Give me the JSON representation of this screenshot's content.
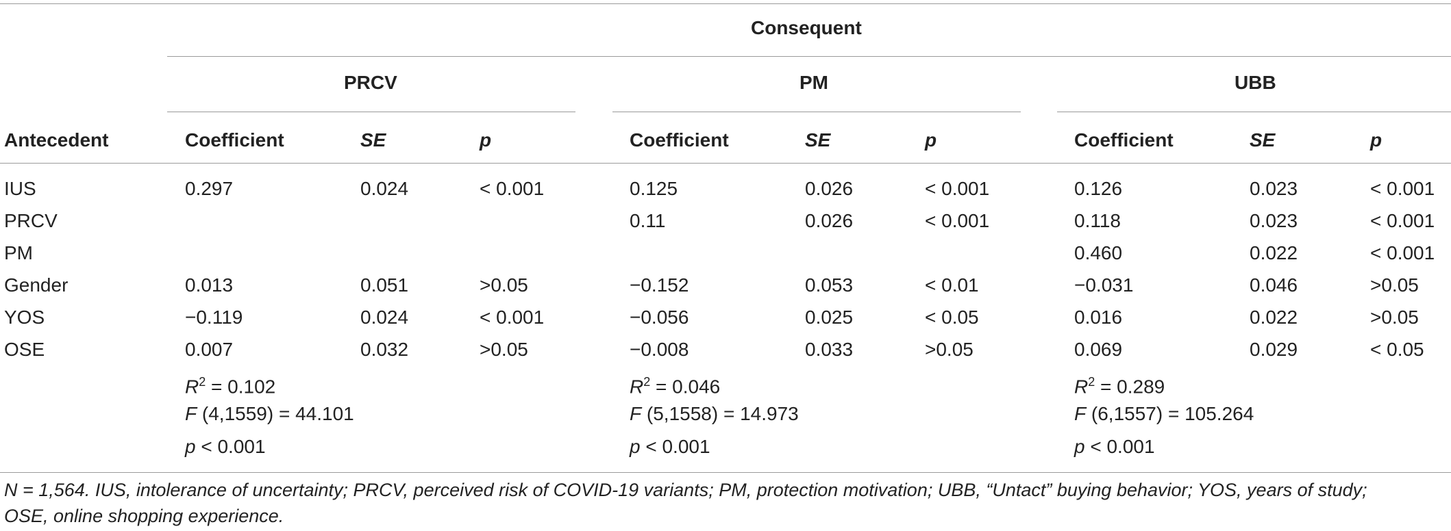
{
  "table": {
    "consequent_label": "Consequent",
    "groups": [
      "PRCV",
      "PM",
      "UBB"
    ],
    "antecedent_label": "Antecedent",
    "subheaders": [
      "Coefficient",
      "SE",
      "p"
    ],
    "rows": [
      {
        "label": "IUS",
        "values": [
          [
            "0.297",
            "0.024",
            " < 0.001"
          ],
          [
            "0.125",
            "0.026",
            " < 0.001"
          ],
          [
            "0.126",
            "0.023",
            " < 0.001"
          ]
        ]
      },
      {
        "label": "PRCV",
        "values": [
          [
            "",
            "",
            ""
          ],
          [
            "0.11",
            "0.026",
            " < 0.001"
          ],
          [
            "0.118",
            "0.023",
            " < 0.001"
          ]
        ]
      },
      {
        "label": "PM",
        "values": [
          [
            "",
            "",
            ""
          ],
          [
            "",
            "",
            ""
          ],
          [
            "0.460",
            "0.022",
            " < 0.001"
          ]
        ]
      },
      {
        "label": "Gender",
        "values": [
          [
            "0.013",
            "0.051",
            ">0.05"
          ],
          [
            "−0.152",
            "0.053",
            " < 0.01"
          ],
          [
            "−0.031",
            "0.046",
            ">0.05"
          ]
        ]
      },
      {
        "label": "YOS",
        "values": [
          [
            "−0.119",
            "0.024",
            " < 0.001"
          ],
          [
            "−0.056",
            "0.025",
            " < 0.05"
          ],
          [
            "0.016",
            "0.022",
            ">0.05"
          ]
        ]
      },
      {
        "label": "OSE",
        "values": [
          [
            "0.007",
            "0.032",
            ">0.05"
          ],
          [
            "−0.008",
            "0.033",
            ">0.05"
          ],
          [
            "0.069",
            "0.029",
            " < 0.05"
          ]
        ]
      }
    ],
    "stats": [
      {
        "r2_symbol": "R",
        "r2_sup": "2",
        "r2_value": " = 0.102",
        "f_symbol": "F",
        "f_value": " (4,1559) = 44.101",
        "p_symbol": "p",
        "p_value": " < 0.001"
      },
      {
        "r2_symbol": "R",
        "r2_sup": "2",
        "r2_value": " = 0.046",
        "f_symbol": "F",
        "f_value": " (5,1558) = 14.973",
        "p_symbol": "p",
        "p_value": " < 0.001"
      },
      {
        "r2_symbol": "R",
        "r2_sup": "2",
        "r2_value": " = 0.289",
        "f_symbol": "F",
        "f_value": " (6,1557) = 105.264",
        "p_symbol": "p",
        "p_value": " < 0.001"
      }
    ],
    "footnote_line1": "N = 1,564. IUS, intolerance of uncertainty; PRCV, perceived risk of COVID-19 variants; PM, protection motivation; UBB, “Untact” buying behavior; YOS, years of study;",
    "footnote_line2": "OSE, online shopping experience."
  }
}
